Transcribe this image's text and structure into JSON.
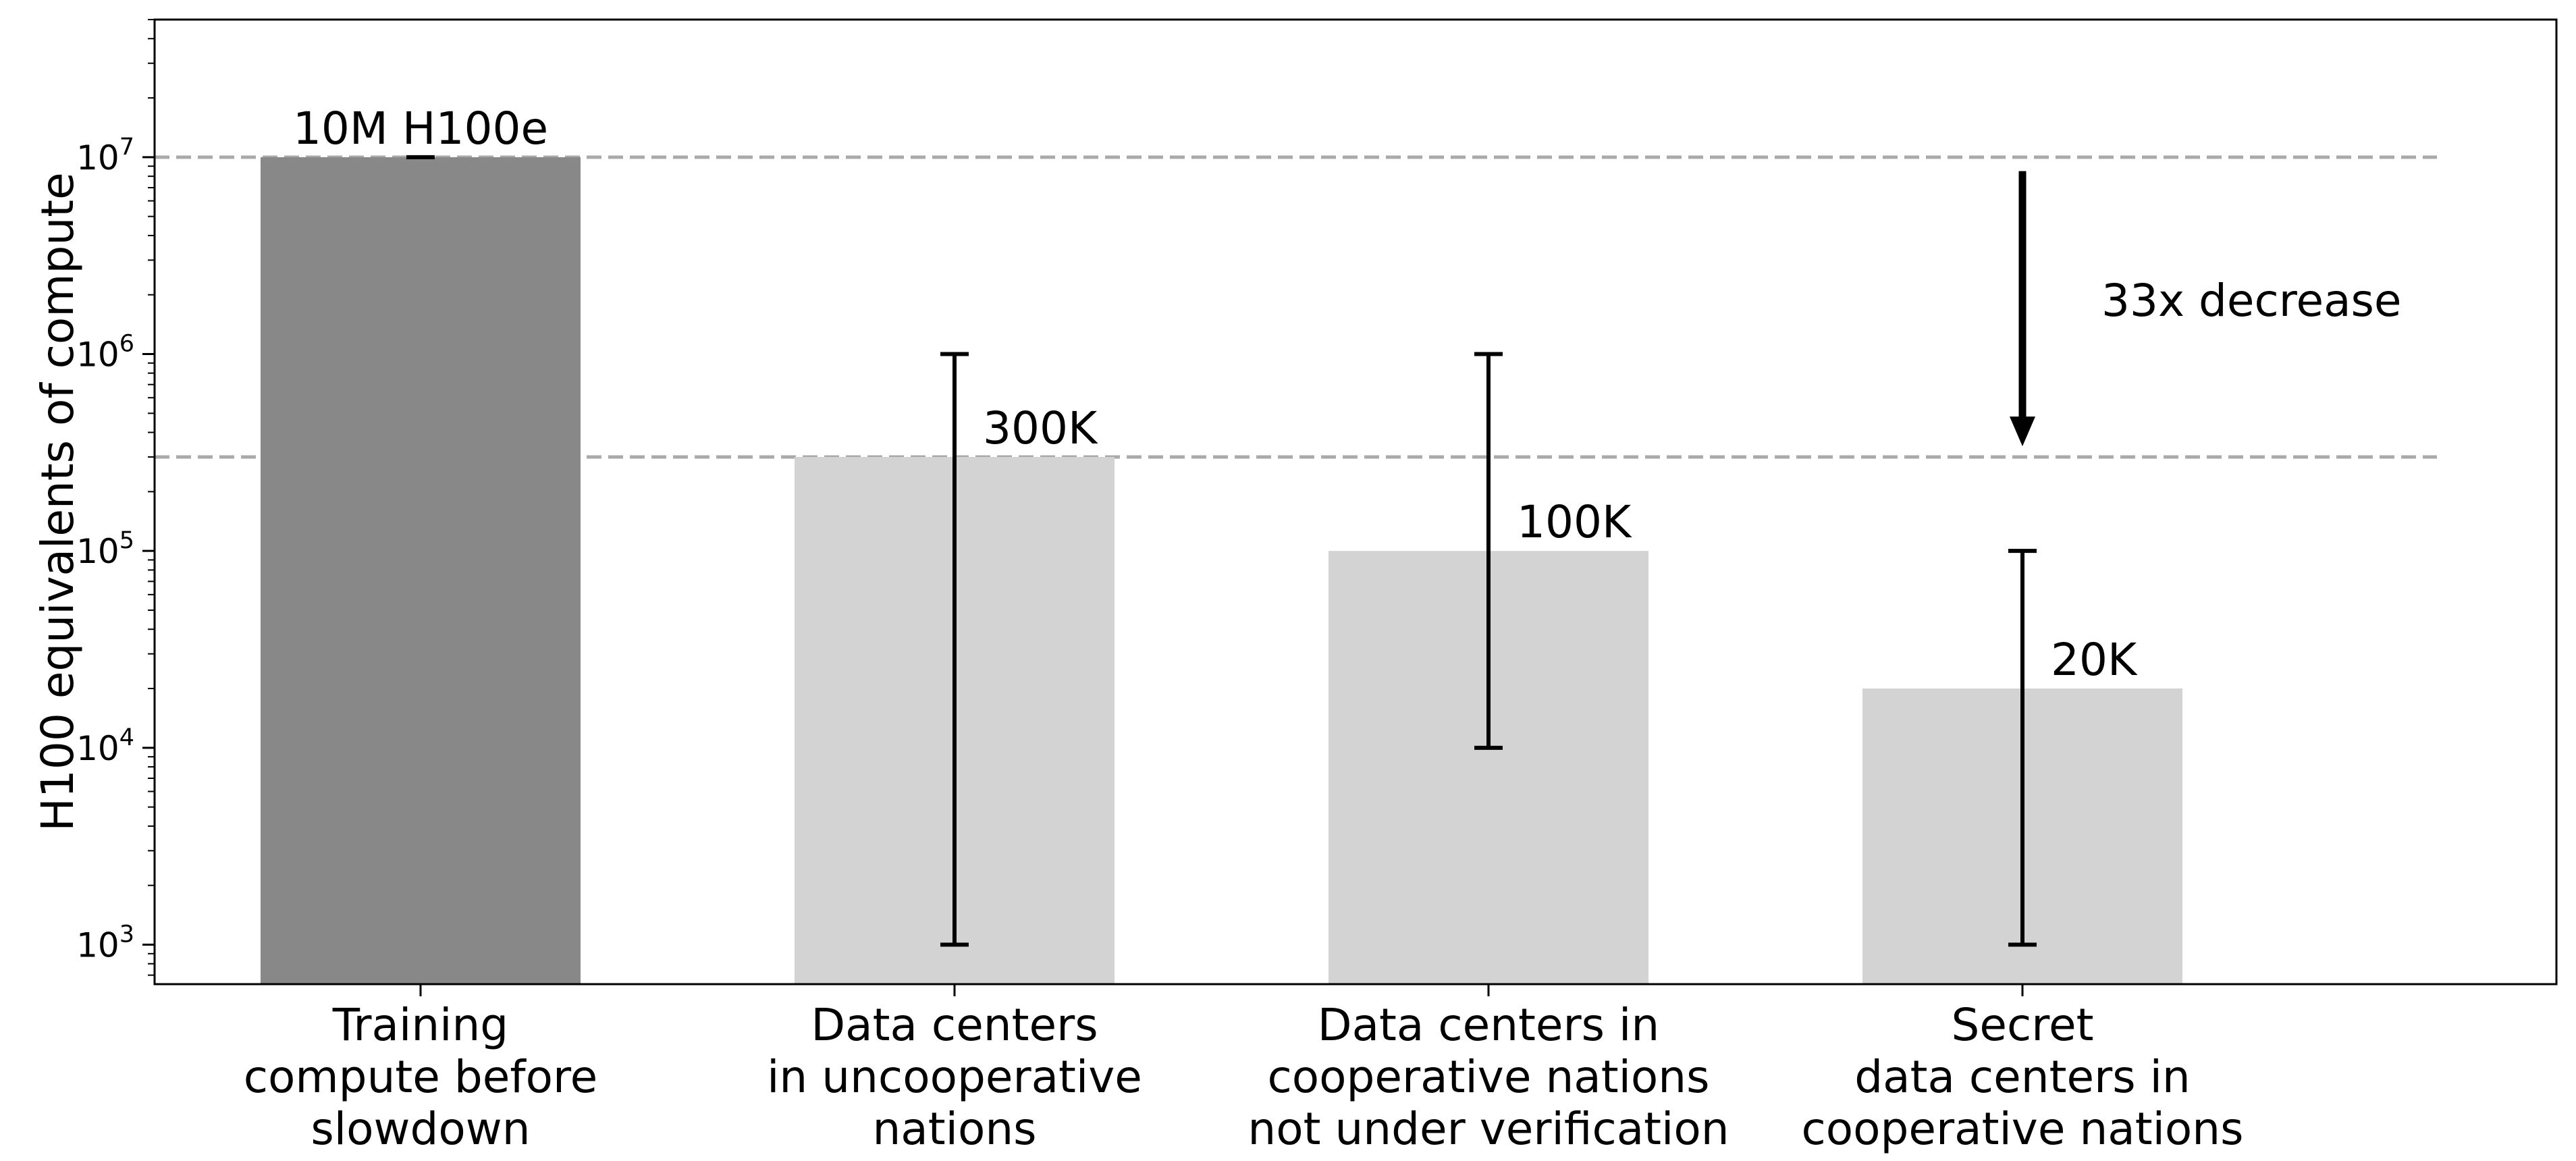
{
  "chart_data": {
    "type": "bar",
    "categories": [
      [
        "Training",
        "compute before",
        "slowdown"
      ],
      [
        "Data centers",
        "in uncooperative",
        "nations"
      ],
      [
        "Data centers in",
        "cooperative nations",
        "not under verification"
      ],
      [
        "Secret",
        "data centers in",
        "cooperative nations"
      ]
    ],
    "values": [
      10000000,
      300000,
      100000,
      20000
    ],
    "error_bars": [
      null,
      [
        1000,
        1000000
      ],
      [
        10000,
        1000000
      ],
      [
        1000,
        100000
      ]
    ],
    "value_labels": [
      "10M H100e",
      "300K",
      "100K",
      "20K"
    ],
    "bar_colors": [
      "#888888",
      "#d3d3d3",
      "#d3d3d3",
      "#d3d3d3"
    ],
    "xlabel": "",
    "ylabel": "H100 equivalents of compute",
    "yscale": "log",
    "ylim": [
      630,
      50000000
    ],
    "yticks": [
      {
        "value": 1000,
        "base": "10",
        "exp": "3"
      },
      {
        "value": 10000,
        "base": "10",
        "exp": "4"
      },
      {
        "value": 100000,
        "base": "10",
        "exp": "5"
      },
      {
        "value": 1000000,
        "base": "10",
        "exp": "6"
      },
      {
        "value": 10000000,
        "base": "10",
        "exp": "7"
      }
    ],
    "reference_lines": [
      10000000,
      300000
    ],
    "reference_line_color": "#aaaaaa",
    "annotation": {
      "text": "33x decrease",
      "arrow_from": 8500000,
      "arrow_to": 340000
    },
    "grid": false,
    "legend": "none"
  }
}
